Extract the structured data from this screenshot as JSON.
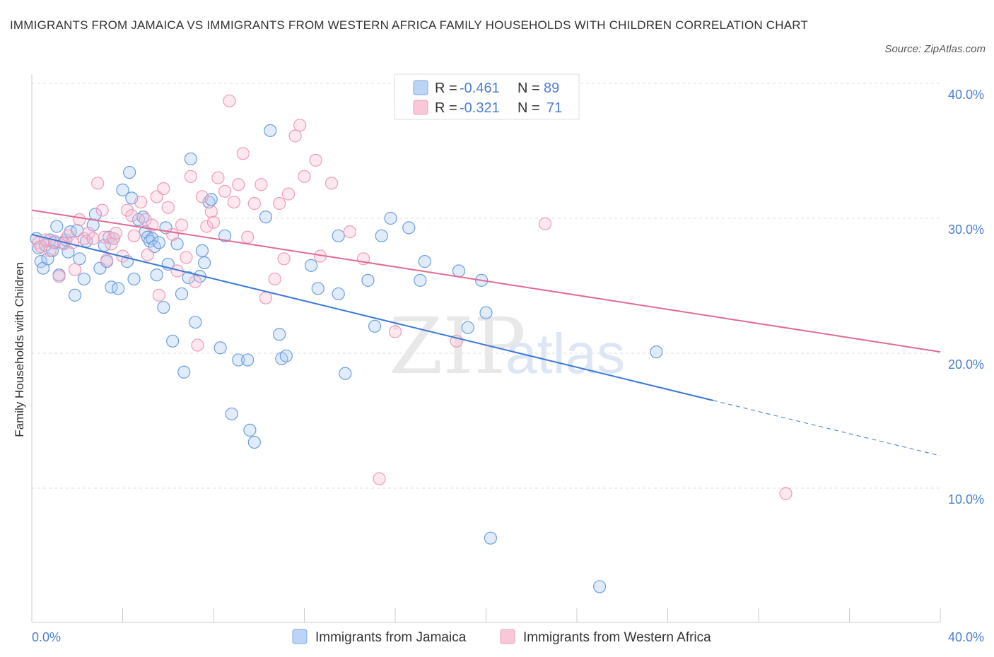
{
  "title": "IMMIGRANTS FROM JAMAICA VS IMMIGRANTS FROM WESTERN AFRICA FAMILY HOUSEHOLDS WITH CHILDREN CORRELATION CHART",
  "source": "Source: ZipAtlas.com",
  "watermark": {
    "zip": "ZIP",
    "atlas": "atlas"
  },
  "colors": {
    "jamaica": "#7aaae8",
    "jamaica_line": "#3a78d4",
    "wafrica": "#f0a0bc",
    "wafrica_line": "#e06a94",
    "tick": "#4a7fd4"
  },
  "legend": {
    "rows": [
      {
        "r_label": "R = ",
        "r_value": "-0.461",
        "n_label": "N = ",
        "n_value": "89"
      },
      {
        "r_label": "R = ",
        "r_value": "-0.321",
        "n_label": "N = ",
        "n_value": "71"
      }
    ]
  },
  "bottom_legend": [
    "Immigrants from Jamaica",
    "Immigrants from Western Africa"
  ],
  "chart_data": {
    "type": "scatter",
    "title": "IMMIGRANTS FROM JAMAICA VS IMMIGRANTS FROM WESTERN AFRICA FAMILY HOUSEHOLDS WITH CHILDREN CORRELATION CHART",
    "xlabel": "",
    "ylabel": "Family Households with Children",
    "xlim": [
      0,
      40
    ],
    "ylim": [
      0,
      40
    ],
    "x_tick_labels": [
      "0.0%",
      "40.0%"
    ],
    "y_ticks": [
      10,
      20,
      30,
      40
    ],
    "y_tick_labels": [
      "10.0%",
      "20.0%",
      "30.0%",
      "40.0%"
    ],
    "grid": true,
    "legend_position": "top-center",
    "series": [
      {
        "name": "Immigrants from Jamaica",
        "r": -0.461,
        "n": 89,
        "trend": {
          "x0": 0,
          "y0": 28.8,
          "x1": 30,
          "y1": 16.5,
          "dash_to_x": 40,
          "dash_to_y": 12.4
        },
        "points": [
          [
            0.2,
            28.5
          ],
          [
            0.3,
            27.8
          ],
          [
            0.4,
            26.8
          ],
          [
            0.5,
            26.3
          ],
          [
            0.6,
            28.0
          ],
          [
            0.7,
            27.0
          ],
          [
            0.8,
            28.4
          ],
          [
            0.9,
            27.6
          ],
          [
            1.0,
            28.2
          ],
          [
            1.1,
            29.4
          ],
          [
            1.2,
            25.8
          ],
          [
            1.4,
            28.2
          ],
          [
            1.5,
            28.4
          ],
          [
            1.6,
            27.5
          ],
          [
            1.7,
            29.0
          ],
          [
            1.9,
            24.3
          ],
          [
            2.0,
            29.1
          ],
          [
            2.1,
            27.0
          ],
          [
            2.3,
            25.5
          ],
          [
            2.4,
            28.3
          ],
          [
            2.7,
            29.5
          ],
          [
            2.8,
            30.3
          ],
          [
            3.0,
            26.3
          ],
          [
            3.2,
            28.0
          ],
          [
            3.3,
            26.8
          ],
          [
            3.4,
            28.6
          ],
          [
            3.5,
            24.9
          ],
          [
            3.6,
            28.5
          ],
          [
            3.8,
            24.8
          ],
          [
            4.0,
            32.1
          ],
          [
            4.2,
            26.8
          ],
          [
            4.3,
            33.4
          ],
          [
            4.4,
            31.5
          ],
          [
            4.5,
            25.5
          ],
          [
            4.7,
            29.9
          ],
          [
            4.9,
            30.1
          ],
          [
            5.0,
            29.0
          ],
          [
            5.1,
            28.6
          ],
          [
            5.2,
            28.3
          ],
          [
            5.3,
            28.5
          ],
          [
            5.4,
            27.9
          ],
          [
            5.5,
            25.8
          ],
          [
            5.6,
            28.2
          ],
          [
            5.8,
            23.4
          ],
          [
            5.9,
            29.3
          ],
          [
            6.0,
            26.6
          ],
          [
            6.2,
            20.9
          ],
          [
            6.4,
            28.1
          ],
          [
            6.6,
            24.4
          ],
          [
            6.7,
            18.6
          ],
          [
            6.9,
            25.6
          ],
          [
            7.0,
            34.4
          ],
          [
            7.2,
            22.3
          ],
          [
            7.4,
            25.7
          ],
          [
            7.5,
            27.6
          ],
          [
            7.6,
            26.7
          ],
          [
            7.8,
            31.2
          ],
          [
            7.9,
            31.4
          ],
          [
            8.3,
            20.4
          ],
          [
            8.5,
            28.7
          ],
          [
            8.8,
            15.5
          ],
          [
            9.1,
            19.5
          ],
          [
            9.5,
            19.5
          ],
          [
            9.6,
            14.3
          ],
          [
            9.8,
            13.4
          ],
          [
            10.3,
            30.1
          ],
          [
            10.5,
            36.5
          ],
          [
            10.9,
            21.4
          ],
          [
            11.0,
            19.6
          ],
          [
            11.2,
            19.8
          ],
          [
            12.3,
            26.5
          ],
          [
            12.6,
            24.8
          ],
          [
            13.5,
            28.7
          ],
          [
            13.8,
            18.5
          ],
          [
            13.5,
            24.4
          ],
          [
            14.8,
            25.4
          ],
          [
            15.1,
            22.0
          ],
          [
            15.4,
            28.7
          ],
          [
            15.8,
            30.0
          ],
          [
            16.6,
            29.3
          ],
          [
            17.1,
            25.4
          ],
          [
            17.3,
            26.8
          ],
          [
            18.8,
            26.1
          ],
          [
            19.2,
            21.9
          ],
          [
            19.8,
            25.4
          ],
          [
            20.0,
            23.0
          ],
          [
            20.2,
            6.3
          ],
          [
            25.0,
            2.7
          ],
          [
            27.5,
            20.1
          ]
        ]
      },
      {
        "name": "Immigrants from Western Africa",
        "r": -0.321,
        "n": 71,
        "trend": {
          "x0": 0,
          "y0": 30.6,
          "x1": 40,
          "y1": 20.1
        },
        "points": [
          [
            0.3,
            28.2
          ],
          [
            0.4,
            27.9
          ],
          [
            0.6,
            28.4
          ],
          [
            0.8,
            27.6
          ],
          [
            1.0,
            28.3
          ],
          [
            1.2,
            25.7
          ],
          [
            1.4,
            28.1
          ],
          [
            1.6,
            28.7
          ],
          [
            1.8,
            28.2
          ],
          [
            1.9,
            26.2
          ],
          [
            2.1,
            29.9
          ],
          [
            2.3,
            28.5
          ],
          [
            2.5,
            28.9
          ],
          [
            2.7,
            28.5
          ],
          [
            2.9,
            32.6
          ],
          [
            3.1,
            30.6
          ],
          [
            3.2,
            28.6
          ],
          [
            3.3,
            26.9
          ],
          [
            3.5,
            28.1
          ],
          [
            3.6,
            28.5
          ],
          [
            3.7,
            28.9
          ],
          [
            4.0,
            27.2
          ],
          [
            4.2,
            30.6
          ],
          [
            4.4,
            30.2
          ],
          [
            4.5,
            28.7
          ],
          [
            4.8,
            31.2
          ],
          [
            5.0,
            29.9
          ],
          [
            5.1,
            27.3
          ],
          [
            5.3,
            29.5
          ],
          [
            5.5,
            31.6
          ],
          [
            5.6,
            24.3
          ],
          [
            5.8,
            32.2
          ],
          [
            6.0,
            30.8
          ],
          [
            6.2,
            28.8
          ],
          [
            6.4,
            26.1
          ],
          [
            6.6,
            29.5
          ],
          [
            6.8,
            27.1
          ],
          [
            7.0,
            33.1
          ],
          [
            7.2,
            25.3
          ],
          [
            7.3,
            20.6
          ],
          [
            7.5,
            31.6
          ],
          [
            7.7,
            29.4
          ],
          [
            7.9,
            30.5
          ],
          [
            8.0,
            29.7
          ],
          [
            8.2,
            33.0
          ],
          [
            8.5,
            32.0
          ],
          [
            8.7,
            38.7
          ],
          [
            8.9,
            31.2
          ],
          [
            9.1,
            32.5
          ],
          [
            9.3,
            34.8
          ],
          [
            9.5,
            28.6
          ],
          [
            9.8,
            31.1
          ],
          [
            10.1,
            32.5
          ],
          [
            10.3,
            24.1
          ],
          [
            10.7,
            25.5
          ],
          [
            10.9,
            31.1
          ],
          [
            11.1,
            27.0
          ],
          [
            11.3,
            31.8
          ],
          [
            11.6,
            36.1
          ],
          [
            11.8,
            36.9
          ],
          [
            12.0,
            33.1
          ],
          [
            12.5,
            34.3
          ],
          [
            12.7,
            27.2
          ],
          [
            13.2,
            32.6
          ],
          [
            14.6,
            27.0
          ],
          [
            15.3,
            10.7
          ],
          [
            16.0,
            21.6
          ],
          [
            18.7,
            20.9
          ],
          [
            22.6,
            29.6
          ],
          [
            33.2,
            9.6
          ],
          [
            14.0,
            29.0
          ]
        ]
      }
    ]
  }
}
